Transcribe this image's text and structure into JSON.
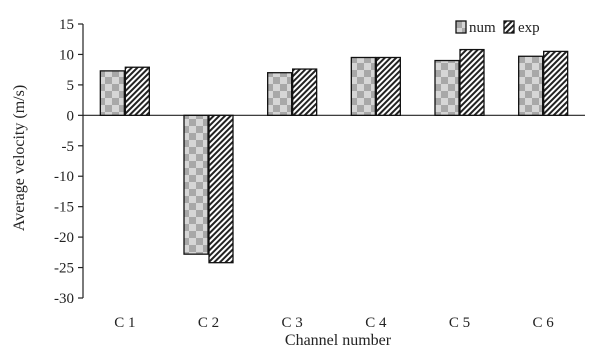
{
  "chart_data": {
    "type": "bar",
    "categories": [
      "C 1",
      "C 2",
      "C 3",
      "C 4",
      "C 5",
      "C 6"
    ],
    "series": [
      {
        "name": "num",
        "values": [
          7.3,
          -22.8,
          7.0,
          9.5,
          9.0,
          9.7
        ],
        "fill": "checker-gray"
      },
      {
        "name": "exp",
        "values": [
          7.9,
          -24.2,
          7.6,
          9.5,
          10.8,
          10.5
        ],
        "fill": "diagonal-hatch"
      }
    ],
    "title": "",
    "xlabel": "Channel number",
    "ylabel": "Average velocity (m/s)",
    "ylim": [
      -30,
      15
    ],
    "yticks": [
      15,
      10,
      5,
      0,
      -5,
      -10,
      -15,
      -20,
      -25,
      -30
    ],
    "grid": false,
    "legend_position": "top-right",
    "colors": {
      "axis": "#222222",
      "bar_outline": "#111111",
      "num_light": "#d6d6d6",
      "num_dark": "#a8a8a8",
      "exp_line": "#222222",
      "exp_bg": "#ffffff"
    }
  }
}
